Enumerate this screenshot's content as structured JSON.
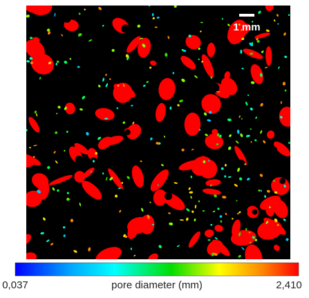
{
  "image": {
    "scale_bar_label": "1 mm"
  },
  "colorbar": {
    "title": "pore diameter (mm)",
    "min_label": "0,037",
    "max_label": "2,410"
  }
}
